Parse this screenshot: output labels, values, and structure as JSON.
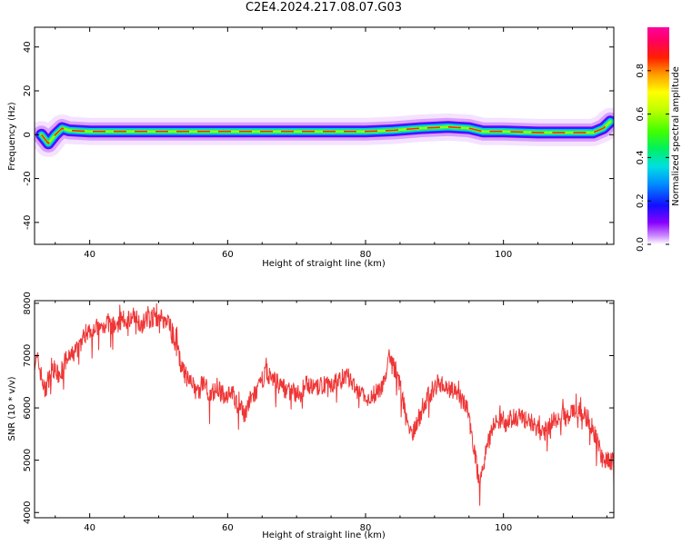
{
  "title": "C2E4.2024.217.08.07.G03",
  "chart_data": [
    {
      "type": "heatmap",
      "title": "C2E4.2024.217.08.07.G03",
      "xlabel": "Height of straight line (km)",
      "ylabel": "Frequency (Hz)",
      "xlim": [
        32,
        116
      ],
      "ylim": [
        -50,
        49
      ],
      "xticks": [
        40,
        60,
        80,
        100
      ],
      "yticks": [
        40,
        20,
        0,
        -20,
        -40
      ],
      "colorbar": {
        "label": "Normalized spectral amplitude",
        "range": [
          0,
          1
        ],
        "ticks": [
          0.0,
          0.2,
          0.4,
          0.6,
          0.8
        ]
      },
      "ridge": {
        "x": [
          33.0,
          34.0,
          35.0,
          36.0,
          37.0,
          40.0,
          50.0,
          60.0,
          70.0,
          80.0,
          84.0,
          88.0,
          92.0,
          95.0,
          97.0,
          100.0,
          105.0,
          110.0,
          113.0,
          114.5,
          115.5
        ],
        "frequency": [
          0.0,
          -4.0,
          0.0,
          3.0,
          2.0,
          1.5,
          1.5,
          1.5,
          1.5,
          1.5,
          2.0,
          3.0,
          3.5,
          3.0,
          1.5,
          1.5,
          1.0,
          1.0,
          1.0,
          3.0,
          6.0
        ]
      },
      "grid": false
    },
    {
      "type": "line",
      "xlabel": "Height of straight line (km)",
      "ylabel": "SNR (10 * v/v)",
      "xlim": [
        32,
        116
      ],
      "ylim": [
        3900,
        8050
      ],
      "xticks": [
        40,
        60,
        80,
        100
      ],
      "yticks": [
        8000,
        7000,
        6000,
        5000,
        4000
      ],
      "color": "#ef3535",
      "x": [
        32.5,
        33.5,
        34.5,
        35.5,
        36.5,
        37.5,
        38.5,
        39.5,
        40.5,
        41.5,
        42.5,
        43.5,
        44.5,
        45.5,
        46.5,
        47.5,
        48.5,
        49.5,
        50.5,
        51.5,
        52.5,
        53.5,
        54.5,
        55.5,
        56.5,
        57.5,
        58.5,
        59.5,
        60.5,
        61.5,
        62.5,
        63.5,
        64.5,
        65.5,
        66.5,
        67.5,
        68.5,
        69.5,
        70.5,
        71.5,
        72.5,
        73.5,
        74.5,
        75.5,
        76.5,
        77.5,
        78.5,
        79.5,
        80.5,
        81.5,
        82.5,
        83.5,
        84.5,
        85.5,
        86.5,
        87.5,
        88.5,
        89.5,
        90.5,
        91.5,
        92.5,
        93.5,
        94.5,
        95.5,
        96.5,
        97.5,
        98.5,
        99.5,
        100.5,
        101.5,
        102.5,
        103.5,
        104.5,
        105.5,
        106.5,
        107.5,
        108.5,
        109.5,
        110.5,
        111.5,
        112.5,
        113.5,
        114.5,
        115.5
      ],
      "y": [
        6900,
        6300,
        6800,
        6600,
        6900,
        7000,
        7200,
        7450,
        7550,
        7500,
        7650,
        7550,
        7650,
        7700,
        7750,
        7600,
        7700,
        7750,
        7700,
        7650,
        7200,
        6700,
        6500,
        6300,
        6500,
        6250,
        6400,
        6200,
        6350,
        6000,
        5900,
        6200,
        6350,
        6700,
        6550,
        6450,
        6350,
        6300,
        6250,
        6500,
        6350,
        6400,
        6500,
        6450,
        6550,
        6600,
        6350,
        6250,
        6100,
        6300,
        6450,
        6900,
        6700,
        6100,
        5500,
        5700,
        6100,
        6300,
        6500,
        6400,
        6350,
        6200,
        6100,
        5450,
        4550,
        5200,
        5650,
        5800,
        5700,
        5850,
        5800,
        5750,
        5700,
        5500,
        5600,
        5800,
        5850,
        5800,
        6000,
        5900,
        5750,
        5400,
        4950,
        5000
      ]
    }
  ]
}
